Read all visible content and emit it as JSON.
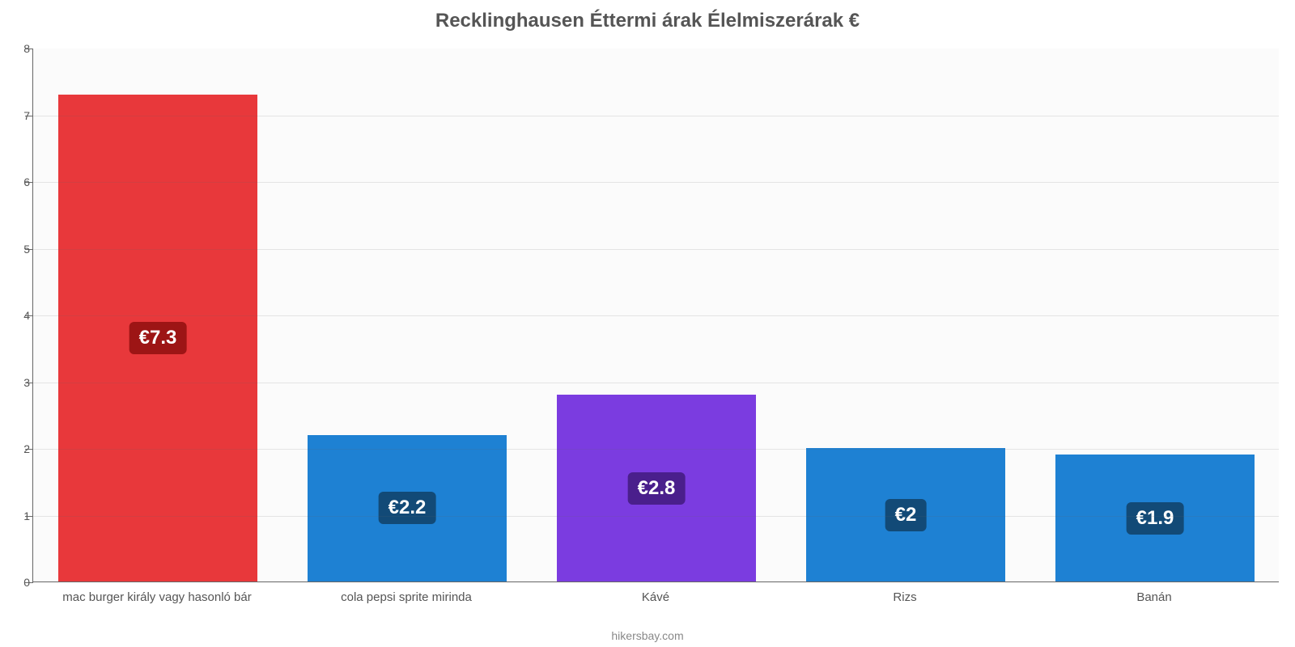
{
  "chart": {
    "type": "bar",
    "title": "Recklinghausen Éttermi árak Élelmiszerárak €",
    "title_fontsize": 24,
    "title_color": "#555555",
    "source": "hikersbay.com",
    "background_color": "#fbfbfb",
    "axis_color": "#666666",
    "tick_label_color": "#555555",
    "tick_label_fontsize": 14,
    "category_label_fontsize": 15,
    "category_label_color": "#555555",
    "ylim": [
      0,
      8
    ],
    "ytick_step": 1,
    "bar_width": 0.8,
    "categories": [
      "mac burger király vagy hasonló bár",
      "cola pepsi sprite mirinda",
      "Kávé",
      "Rizs",
      "Banán"
    ],
    "values": [
      7.3,
      2.2,
      2.8,
      2.0,
      1.9
    ],
    "value_labels": [
      "€7.3",
      "€2.2",
      "€2.8",
      "€2",
      "€1.9"
    ],
    "bar_colors": [
      "#e8383b",
      "#1e81d3",
      "#7b3ce0",
      "#1e81d3",
      "#1e81d3"
    ],
    "badge_bg_colors": [
      "#9d1515",
      "#124a77",
      "#4a1f8c",
      "#124a77",
      "#124a77"
    ],
    "badge_text_color": "#ffffff",
    "badge_fontsize": 24
  }
}
